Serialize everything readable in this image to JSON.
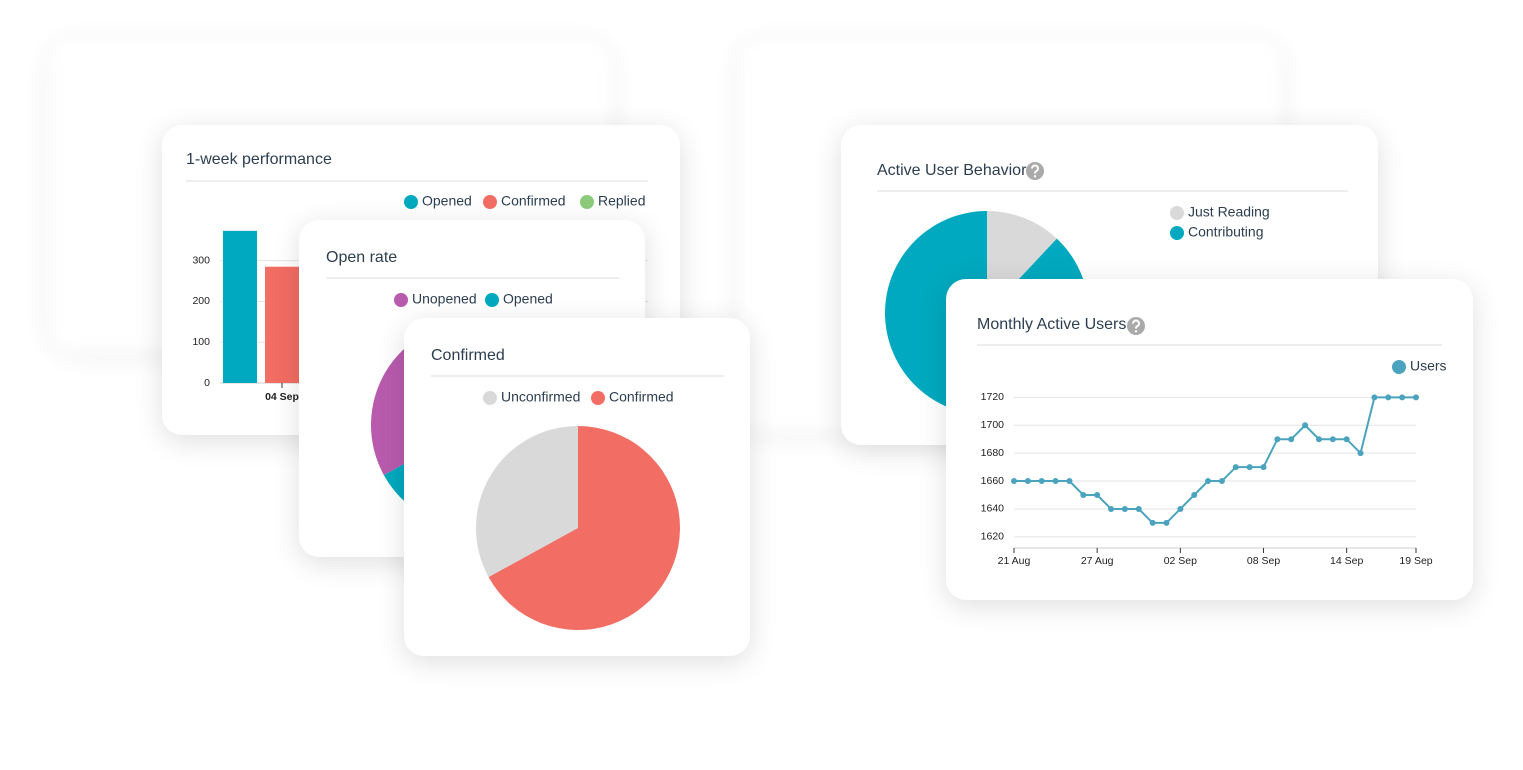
{
  "chart_data": [
    {
      "type": "bar",
      "title": "1-week performance",
      "categories": [
        "04 Sep"
      ],
      "series": [
        {
          "name": "Opened",
          "color": "#00a9bf",
          "values": [
            373
          ]
        },
        {
          "name": "Confirmed",
          "color": "#f26d63",
          "values": [
            285
          ]
        },
        {
          "name": "Replied",
          "color": "#8ccb7b",
          "values": [
            null
          ]
        }
      ],
      "ylim": [
        0,
        375
      ],
      "yticks": [
        0,
        100,
        200,
        300
      ],
      "grid": true
    },
    {
      "type": "pie",
      "title": "Open rate",
      "labels": [
        "Unopened",
        "Opened"
      ],
      "values": [
        33,
        67
      ],
      "colors": [
        "#b85bad",
        "#00a9bf"
      ],
      "clockwise": false
    },
    {
      "type": "pie",
      "title": "Confirmed",
      "labels": [
        "Unconfirmed",
        "Confirmed"
      ],
      "values": [
        33,
        67
      ],
      "colors": [
        "#d9d9d9",
        "#f26d63"
      ],
      "clockwise": false
    },
    {
      "type": "pie",
      "title": "Active User Behavior",
      "labels": [
        "Just Reading",
        "Contributing"
      ],
      "values": [
        12,
        88
      ],
      "colors": [
        "#d9d9d9",
        "#00a9bf"
      ],
      "clockwise": true
    },
    {
      "type": "line",
      "title": "Monthly Active Users",
      "x": [
        "21 Aug",
        "22 Aug",
        "23 Aug",
        "24 Aug",
        "25 Aug",
        "26 Aug",
        "27 Aug",
        "28 Aug",
        "29 Aug",
        "30 Aug",
        "31 Aug",
        "01 Sep",
        "02 Sep",
        "03 Sep",
        "04 Sep",
        "05 Sep",
        "06 Sep",
        "07 Sep",
        "08 Sep",
        "09 Sep",
        "10 Sep",
        "11 Sep",
        "12 Sep",
        "13 Sep",
        "14 Sep",
        "15 Sep",
        "16 Sep",
        "17 Sep",
        "18 Sep",
        "19 Sep"
      ],
      "series": [
        {
          "name": "Users",
          "color": "#4ba3bd",
          "values": [
            1660,
            1660,
            1660,
            1660,
            1660,
            1650,
            1650,
            1640,
            1640,
            1640,
            1630,
            1630,
            1640,
            1650,
            1660,
            1660,
            1670,
            1670,
            1670,
            1690,
            1690,
            1700,
            1690,
            1690,
            1690,
            1680,
            1720,
            1720,
            1720,
            1720
          ]
        }
      ],
      "xticks": [
        "21 Aug",
        "27 Aug",
        "02 Sep",
        "08 Sep",
        "14 Sep",
        "19 Sep"
      ],
      "ylim": [
        1612,
        1726
      ],
      "yticks": [
        1620,
        1640,
        1660,
        1680,
        1700,
        1720
      ],
      "grid": true
    }
  ]
}
